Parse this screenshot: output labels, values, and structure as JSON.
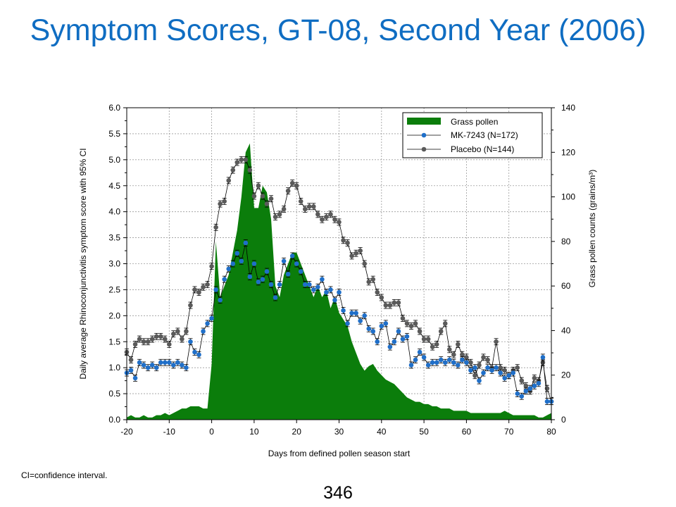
{
  "title": "Symptom Scores, GT-08, Second Year (2006)",
  "footnote": "CI=confidence interval.",
  "page_number": "346",
  "colors": {
    "title": "#0f6dc2",
    "pollen": "#0b7d0b",
    "mk": "#1f6fc9",
    "placebo": "#5a5a5a"
  },
  "chart_data": {
    "type": "line",
    "xlabel": "Days from defined pollen season start",
    "ylabel": "Daily average Rhinoconjunctivitis symptom score with 95% CI",
    "y2label": "Grass pollen counts (grains/m³)",
    "xlim": [
      -20,
      80
    ],
    "ylim": [
      0,
      6
    ],
    "y2lim": [
      0,
      140
    ],
    "xticks": [
      "-20",
      "-10",
      "0",
      "10",
      "20",
      "30",
      "40",
      "50",
      "60",
      "70",
      "80"
    ],
    "yticks": [
      "0.0",
      "0.5",
      "1.0",
      "1.5",
      "2.0",
      "2.5",
      "3.0",
      "3.5",
      "4.0",
      "4.5",
      "5.0",
      "5.5",
      "6.0"
    ],
    "y2ticks": [
      "0",
      "20",
      "40",
      "60",
      "80",
      "100",
      "120",
      "140"
    ],
    "grid": true,
    "legend": {
      "placement": "top-right",
      "items": [
        "Grass pollen",
        "MK-7243 (N=172)",
        "Placebo (N=144)"
      ]
    },
    "series": [
      {
        "name": "Grass pollen",
        "kind": "area",
        "axis": "right",
        "x": [
          -20,
          -19,
          -18,
          -17,
          -16,
          -15,
          -14,
          -13,
          -12,
          -11,
          -10,
          -9,
          -8,
          -7,
          -6,
          -5,
          -4,
          -3,
          -2,
          -1,
          0,
          1,
          2,
          3,
          4,
          5,
          6,
          7,
          8,
          9,
          10,
          11,
          12,
          13,
          14,
          15,
          16,
          17,
          18,
          19,
          20,
          21,
          22,
          23,
          24,
          25,
          26,
          27,
          28,
          29,
          30,
          31,
          32,
          33,
          34,
          35,
          36,
          37,
          38,
          39,
          40,
          41,
          42,
          43,
          44,
          45,
          46,
          47,
          48,
          49,
          50,
          51,
          52,
          53,
          54,
          55,
          56,
          57,
          58,
          59,
          60,
          61,
          62,
          63,
          64,
          65,
          66,
          67,
          68,
          69,
          70,
          71,
          72,
          73,
          74,
          75,
          76,
          77,
          78,
          79,
          80
        ],
        "values": [
          1,
          2,
          1,
          1,
          2,
          1,
          1,
          2,
          2,
          3,
          2,
          3,
          4,
          5,
          5,
          6,
          6,
          6,
          5,
          5,
          25,
          80,
          55,
          60,
          65,
          75,
          85,
          100,
          120,
          124,
          95,
          95,
          105,
          102,
          90,
          60,
          55,
          65,
          70,
          75,
          75,
          70,
          65,
          60,
          55,
          60,
          55,
          58,
          50,
          55,
          48,
          45,
          42,
          35,
          30,
          25,
          22,
          24,
          25,
          22,
          20,
          18,
          17,
          16,
          14,
          12,
          10,
          9,
          8,
          8,
          7,
          7,
          6,
          6,
          5,
          5,
          5,
          4,
          4,
          4,
          4,
          3,
          3,
          3,
          3,
          3,
          3,
          3,
          3,
          4,
          3,
          2,
          2,
          2,
          2,
          2,
          2,
          1,
          1,
          2,
          3
        ]
      },
      {
        "name": "MK-7243 (N=172)",
        "kind": "line",
        "axis": "left",
        "x": [
          -20,
          -19,
          -18,
          -17,
          -16,
          -15,
          -14,
          -13,
          -12,
          -11,
          -10,
          -9,
          -8,
          -7,
          -6,
          -5,
          -4,
          -3,
          -2,
          -1,
          0,
          1,
          2,
          3,
          4,
          5,
          6,
          7,
          8,
          9,
          10,
          11,
          12,
          13,
          14,
          15,
          16,
          17,
          18,
          19,
          20,
          21,
          22,
          23,
          24,
          25,
          26,
          27,
          28,
          29,
          30,
          31,
          32,
          33,
          34,
          35,
          36,
          37,
          38,
          39,
          40,
          41,
          42,
          43,
          44,
          45,
          46,
          47,
          48,
          49,
          50,
          51,
          52,
          53,
          54,
          55,
          56,
          57,
          58,
          59,
          60,
          61,
          62,
          63,
          64,
          65,
          66,
          67,
          68,
          69,
          70,
          71,
          72,
          73,
          74,
          75,
          76,
          77,
          78,
          79,
          80
        ],
        "values": [
          0.9,
          0.95,
          0.8,
          1.1,
          1.05,
          1.0,
          1.05,
          1.0,
          1.1,
          1.1,
          1.1,
          1.05,
          1.1,
          1.05,
          1.0,
          1.5,
          1.3,
          1.25,
          1.7,
          1.85,
          1.95,
          2.5,
          2.3,
          2.7,
          2.9,
          3.0,
          3.2,
          3.05,
          3.4,
          2.75,
          3.0,
          2.65,
          2.7,
          2.85,
          2.6,
          2.35,
          2.6,
          3.05,
          2.8,
          3.15,
          3.0,
          2.85,
          2.6,
          2.6,
          2.5,
          2.55,
          2.7,
          2.45,
          2.5,
          2.3,
          2.45,
          2.1,
          1.85,
          2.05,
          2.05,
          1.9,
          2.0,
          1.75,
          1.7,
          1.5,
          1.8,
          1.85,
          1.4,
          1.5,
          1.7,
          1.55,
          1.6,
          1.05,
          1.15,
          1.3,
          1.2,
          1.05,
          1.1,
          1.1,
          1.15,
          1.1,
          1.15,
          1.1,
          1.05,
          1.15,
          1.1,
          0.95,
          1.0,
          0.75,
          0.9,
          1.0,
          0.95,
          1.0,
          0.9,
          0.8,
          0.85,
          0.9,
          0.5,
          0.45,
          0.55,
          0.6,
          0.65,
          0.7,
          1.2,
          0.35,
          0.35
        ]
      },
      {
        "name": "Placebo (N=144)",
        "kind": "line",
        "axis": "left",
        "x": [
          -20,
          -19,
          -18,
          -17,
          -16,
          -15,
          -14,
          -13,
          -12,
          -11,
          -10,
          -9,
          -8,
          -7,
          -6,
          -5,
          -4,
          -3,
          -2,
          -1,
          0,
          1,
          2,
          3,
          4,
          5,
          6,
          7,
          8,
          9,
          10,
          11,
          12,
          13,
          14,
          15,
          16,
          17,
          18,
          19,
          20,
          21,
          22,
          23,
          24,
          25,
          26,
          27,
          28,
          29,
          30,
          31,
          32,
          33,
          34,
          35,
          36,
          37,
          38,
          39,
          40,
          41,
          42,
          43,
          44,
          45,
          46,
          47,
          48,
          49,
          50,
          51,
          52,
          53,
          54,
          55,
          56,
          57,
          58,
          59,
          60,
          61,
          62,
          63,
          64,
          65,
          66,
          67,
          68,
          69,
          70,
          71,
          72,
          73,
          74,
          75,
          76,
          77,
          78,
          79,
          80
        ],
        "values": [
          1.3,
          1.15,
          1.45,
          1.55,
          1.5,
          1.5,
          1.55,
          1.6,
          1.6,
          1.55,
          1.45,
          1.65,
          1.7,
          1.55,
          1.7,
          2.2,
          2.5,
          2.45,
          2.55,
          2.6,
          2.95,
          3.7,
          4.15,
          4.2,
          4.6,
          4.8,
          4.95,
          5.0,
          5.0,
          4.8,
          4.3,
          4.5,
          4.3,
          4.15,
          4.25,
          3.9,
          3.95,
          4.05,
          4.4,
          4.55,
          4.5,
          4.2,
          4.05,
          4.1,
          4.1,
          3.95,
          3.85,
          3.9,
          3.95,
          3.85,
          3.8,
          3.45,
          3.4,
          3.15,
          3.2,
          3.25,
          3.0,
          2.65,
          2.7,
          2.45,
          2.35,
          2.2,
          2.2,
          2.25,
          2.25,
          1.95,
          1.85,
          1.8,
          1.85,
          1.7,
          1.55,
          1.55,
          1.4,
          1.45,
          1.7,
          1.85,
          1.35,
          1.25,
          1.45,
          1.25,
          1.2,
          1.1,
          0.85,
          1.05,
          1.2,
          1.15,
          1.0,
          1.5,
          1.0,
          0.95,
          0.85,
          0.95,
          1.0,
          0.75,
          0.65,
          0.55,
          0.8,
          0.75,
          1.1,
          0.6,
          0.35
        ]
      }
    ]
  }
}
